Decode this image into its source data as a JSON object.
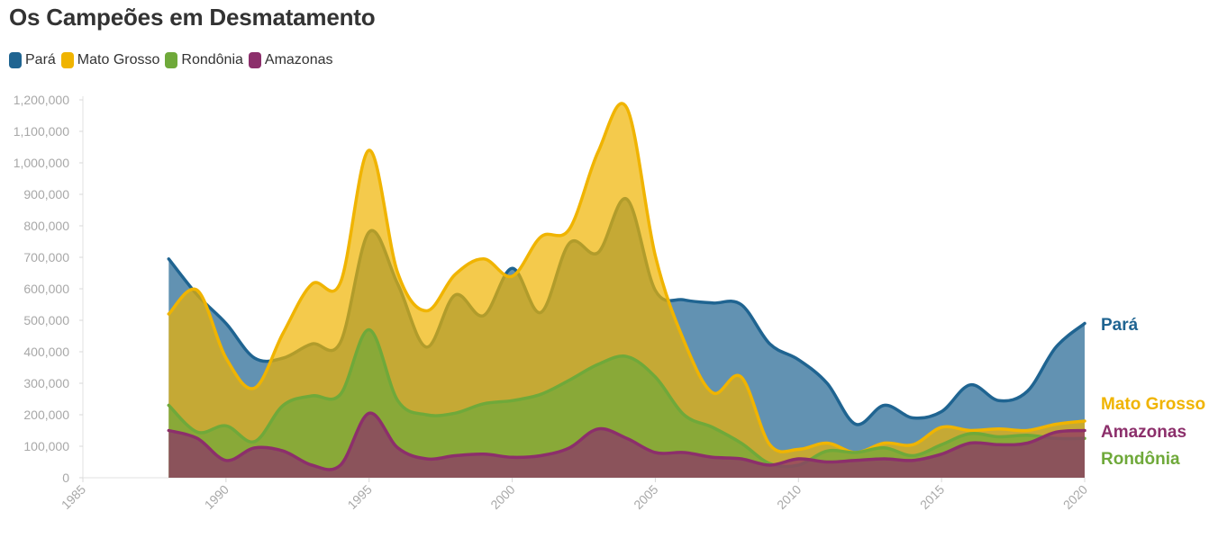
{
  "chart_data": {
    "type": "area",
    "title": "Os Campeões em Desmatamento",
    "xlabel": "",
    "ylabel": "",
    "xlim": [
      1985,
      2020
    ],
    "ylim": [
      0,
      1200000
    ],
    "grid": false,
    "legend_position": "top-left",
    "x_ticks": [
      "1985",
      "1990",
      "1995",
      "2000",
      "2005",
      "2010",
      "2015",
      "2020"
    ],
    "y_ticks": [
      "0",
      "100,000",
      "200,000",
      "300,000",
      "400,000",
      "500,000",
      "600,000",
      "700,000",
      "800,000",
      "900,000",
      "1,000,000",
      "1,100,000",
      "1,200,000"
    ],
    "x": [
      1988,
      1989,
      1990,
      1991,
      1992,
      1993,
      1994,
      1995,
      1996,
      1997,
      1998,
      1999,
      2000,
      2001,
      2002,
      2003,
      2004,
      2005,
      2006,
      2007,
      2008,
      2009,
      2010,
      2011,
      2012,
      2013,
      2014,
      2015,
      2016,
      2017,
      2018,
      2019,
      2020
    ],
    "series": [
      {
        "name": "Pará",
        "color": "#1f6491",
        "values": [
          695000,
          580000,
          490000,
          380000,
          380000,
          425000,
          430000,
          780000,
          615000,
          415000,
          580000,
          515000,
          665000,
          525000,
          745000,
          715000,
          885000,
          595000,
          565000,
          555000,
          550000,
          425000,
          375000,
          300000,
          170000,
          230000,
          190000,
          210000,
          295000,
          245000,
          275000,
          415000,
          490000
        ]
      },
      {
        "name": "Mato Grosso",
        "color": "#f0b400",
        "values": [
          520000,
          595000,
          380000,
          285000,
          460000,
          615000,
          620000,
          1040000,
          650000,
          530000,
          645000,
          695000,
          640000,
          765000,
          790000,
          1035000,
          1175000,
          705000,
          435000,
          270000,
          320000,
          105000,
          90000,
          110000,
          80000,
          110000,
          105000,
          160000,
          150000,
          155000,
          150000,
          170000,
          180000
        ]
      },
      {
        "name": "Rondônia",
        "color": "#6fa93a",
        "values": [
          230000,
          145000,
          165000,
          115000,
          230000,
          260000,
          265000,
          470000,
          245000,
          200000,
          205000,
          235000,
          245000,
          265000,
          310000,
          360000,
          385000,
          320000,
          200000,
          160000,
          110000,
          45000,
          40000,
          85000,
          80000,
          95000,
          70000,
          105000,
          140000,
          130000,
          135000,
          125000,
          125000
        ]
      },
      {
        "name": "Amazonas",
        "color": "#8c2f6b",
        "values": [
          150000,
          125000,
          55000,
          95000,
          85000,
          40000,
          40000,
          205000,
          95000,
          60000,
          70000,
          75000,
          65000,
          70000,
          95000,
          155000,
          125000,
          80000,
          80000,
          65000,
          60000,
          40000,
          60000,
          50000,
          55000,
          60000,
          55000,
          75000,
          110000,
          105000,
          110000,
          145000,
          150000
        ]
      }
    ],
    "end_labels": [
      {
        "series": "Pará",
        "text": "Pará",
        "color": "#1f6491"
      },
      {
        "series": "Mato Grosso",
        "text": "Mato Grosso",
        "color": "#f0b400"
      },
      {
        "series": "Amazonas",
        "text": "Amazonas",
        "color": "#8c2f6b"
      },
      {
        "series": "Rondônia",
        "text": "Rondônia",
        "color": "#6fa93a"
      }
    ]
  }
}
